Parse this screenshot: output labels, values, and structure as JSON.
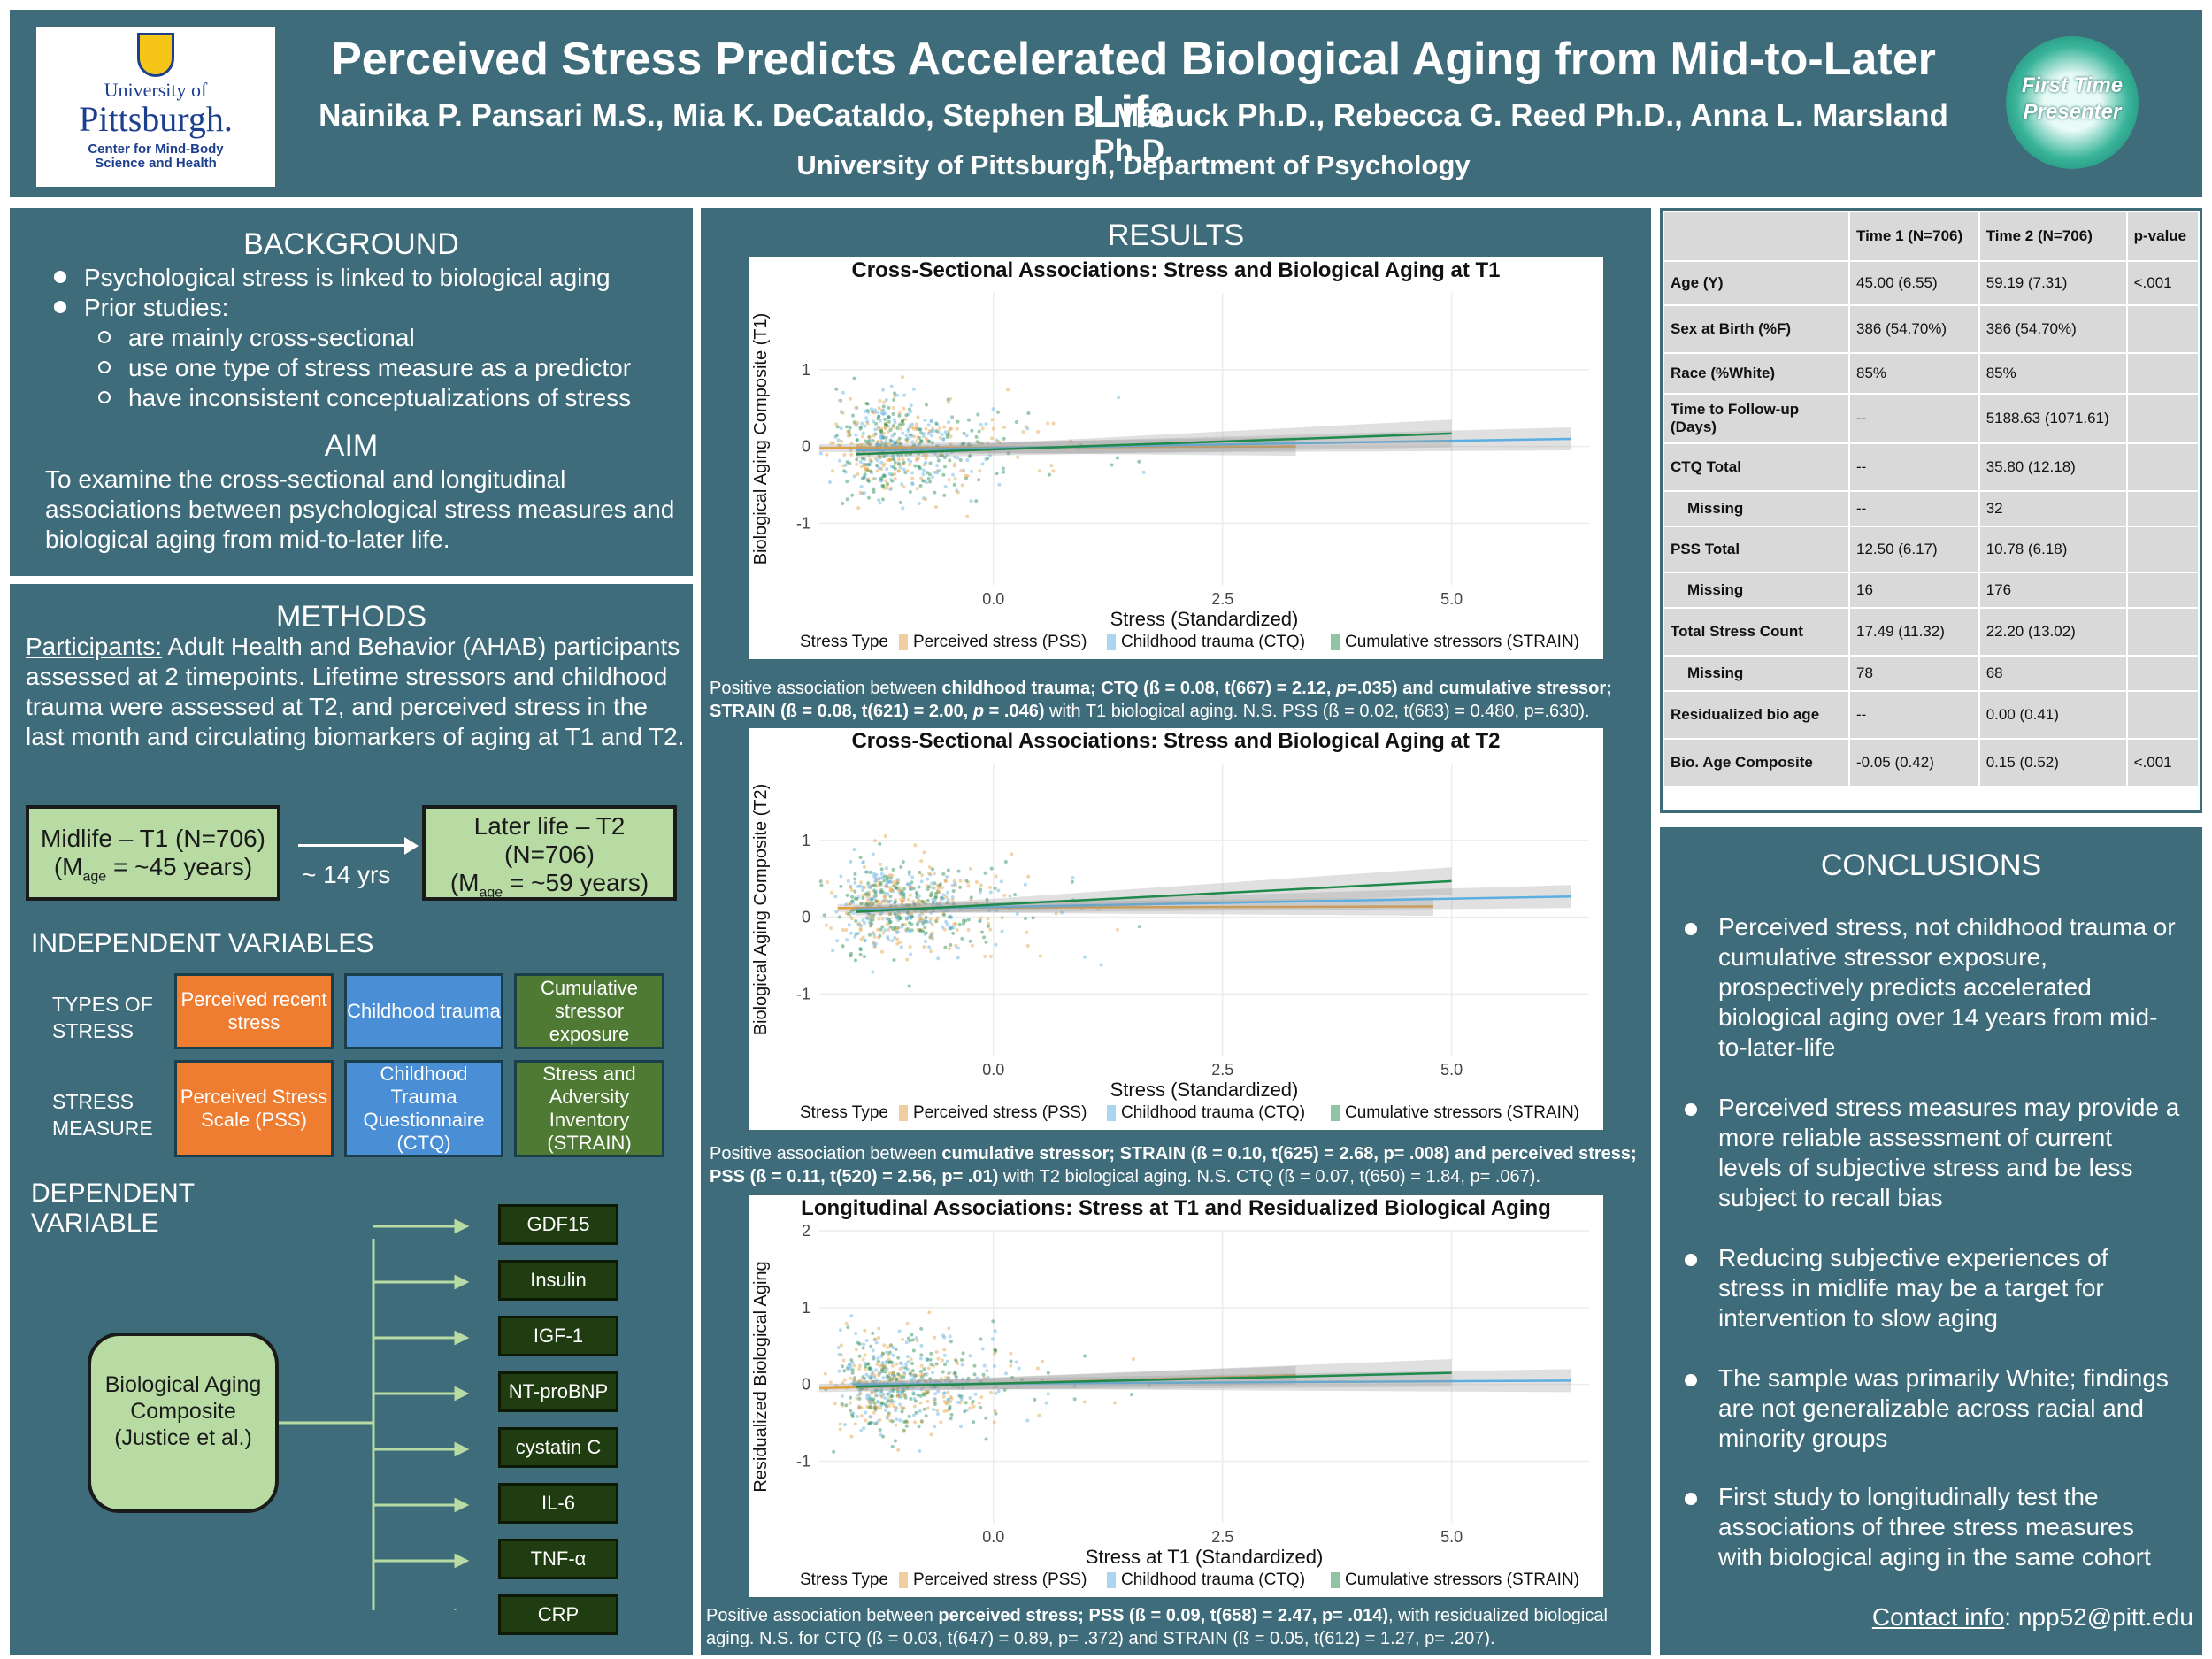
{
  "header": {
    "title": "Perceived Stress Predicts Accelerated Biological Aging from Mid-to-Later Life",
    "authors": "Nainika P. Pansari M.S., Mia K. DeCataldo, Stephen B. Manuck Ph.D., Rebecca G. Reed Ph.D., Anna L. Marsland Ph.D.",
    "affiliation": "University of Pittsburgh, Department of Psychology",
    "logo_left": {
      "line1": "University of",
      "line2": "Pittsburgh.",
      "line3": "Center for Mind-Body",
      "line4": "Science and Health"
    },
    "logo_right": {
      "line1": "First Time",
      "line2": "Presenter"
    }
  },
  "background": {
    "heading": "BACKGROUND",
    "bullets": [
      "Psychological stress is linked to biological aging",
      "Prior studies:"
    ],
    "sub_bullets": [
      "are mainly cross-sectional",
      "use one type of stress measure as a predictor",
      "have inconsistent conceptualizations of stress"
    ],
    "aim_heading": "AIM",
    "aim_text": "To examine the cross-sectional and longitudinal associations between psychological stress measures and biological aging from mid-to-later life."
  },
  "methods": {
    "heading": "METHODS",
    "participants_label": "Participants:",
    "participants_text": " Adult Health and Behavior (AHAB) participants assessed at 2 timepoints. Lifetime stressors and childhood trauma were assessed at T2, and perceived stress in the last month and circulating biomarkers of aging at T1 and T2.",
    "t1_line1": "Midlife – T1 (N=706)",
    "t1_m": "(M",
    "t1_sub": "age",
    "t1_rest": " = ~45 years)",
    "gap": "~ 14 yrs",
    "t2_line1": "Later life – T2",
    "t2_line2": "(N=706)",
    "t2_m": "(M",
    "t2_sub": "age",
    "t2_rest": " = ~59 years)",
    "iv_heading": "INDEPENDENT VARIABLES",
    "types_label": "TYPES OF STRESS",
    "measure_label": "STRESS MEASURE",
    "types": [
      "Perceived recent stress",
      "Childhood trauma",
      "Cumulative stressor exposure"
    ],
    "measures": [
      "Perceived Stress Scale (PSS)",
      "Childhood Trauma Questionnaire (CTQ)",
      "Stress and Adversity Inventory (STRAIN)"
    ],
    "dv_heading": "DEPENDENT VARIABLE",
    "composite": "Biological Aging Composite (Justice et al.)",
    "biomarkers": [
      "GDF15",
      "Insulin",
      "IGF-1",
      "NT-proBNP",
      "cystatin C",
      "IL-6",
      "TNF-α",
      "CRP"
    ]
  },
  "results": {
    "heading": "RESULTS",
    "legend": {
      "title": "Stress Type",
      "items": [
        "Perceived stress (PSS)",
        "Childhood trauma (CTQ)",
        "Cumulative stressors (STRAIN)"
      ],
      "colors": [
        "#e0a040",
        "#5aaee0",
        "#1f8a4c"
      ]
    },
    "caption1_pre": "Positive association between ",
    "caption1_b1": "childhood trauma; CTQ (ß = 0.08, t(667) = 2.12, ",
    "caption1_p1": "p",
    "caption1_b1b": "=.035) and cumulative stressor; STRAIN (ß  = 0.08, t(621) = 2.00, ",
    "caption1_p2": "p",
    "caption1_b2": " = .046)",
    "caption1_post": " with T1 biological aging. N.S. PSS (ß = 0.02, t(683) = 0.480, p=.630).",
    "caption2_pre": "Positive association between ",
    "caption2_b": "cumulative stressor; STRAIN (ß  = 0.10, t(625) = 2.68, p= .008) and perceived stress; PSS (ß  = 0.11, t(520) = 2.56, p= .01)",
    "caption2_post": " with T2 biological aging. N.S. CTQ (ß = 0.07, t(650) = 1.84, p= .067).",
    "caption3_pre": "Positive association between ",
    "caption3_b": "perceived stress; PSS (ß = 0.09, t(658) = 2.47, p= .014)",
    "caption3_post": ", with residualized biological aging. N.S. for CTQ (ß = 0.03, t(647) = 0.89, p= .372) and STRAIN (ß = 0.05, t(612) = 1.27, p= .207)."
  },
  "chart_data": [
    {
      "type": "scatter",
      "title": "Cross-Sectional Associations: Stress and Biological Aging at T1",
      "xlabel": "Stress (Standardized)",
      "ylabel": "Biological Aging Composite (T1)",
      "xlim": [
        -1.9,
        6.5
      ],
      "ylim": [
        -1.8,
        2.0
      ],
      "xticks": [
        0.0,
        2.5,
        5.0
      ],
      "yticks": [
        -1,
        0,
        1
      ],
      "series": [
        {
          "name": "Perceived stress (PSS)",
          "line": [
            [
              -1.9,
              -0.02
            ],
            [
              3.3,
              0.0
            ]
          ]
        },
        {
          "name": "Childhood trauma (CTQ)",
          "line": [
            [
              -1.5,
              -0.05
            ],
            [
              6.3,
              0.1
            ]
          ]
        },
        {
          "name": "Cumulative stressors (STRAIN)",
          "line": [
            [
              -1.5,
              -0.1
            ],
            [
              5.0,
              0.17
            ]
          ]
        }
      ]
    },
    {
      "type": "scatter",
      "title": "Cross-Sectional Associations: Stress and Biological Aging at T2",
      "xlabel": "Stress (Standardized)",
      "ylabel": "Biological Aging Composite (T2)",
      "xlim": [
        -1.9,
        6.5
      ],
      "ylim": [
        -1.8,
        2.0
      ],
      "xticks": [
        0.0,
        2.5,
        5.0
      ],
      "yticks": [
        -1,
        0,
        1
      ],
      "series": [
        {
          "name": "Perceived stress (PSS)",
          "line": [
            [
              -1.7,
              0.12
            ],
            [
              4.8,
              0.14
            ]
          ]
        },
        {
          "name": "Childhood trauma (CTQ)",
          "line": [
            [
              -1.5,
              0.1
            ],
            [
              6.3,
              0.27
            ]
          ]
        },
        {
          "name": "Cumulative stressors (STRAIN)",
          "line": [
            [
              -1.5,
              0.07
            ],
            [
              5.0,
              0.47
            ]
          ]
        }
      ]
    },
    {
      "type": "scatter",
      "title": "Longitudinal Associations: Stress at T1 and Residualized Biological Aging",
      "xlabel": "Stress at T1 (Standardized)",
      "ylabel": "Residualized Biological Aging",
      "xlim": [
        -1.9,
        6.5
      ],
      "ylim": [
        -1.8,
        2.0
      ],
      "xticks": [
        0.0,
        2.5,
        5.0
      ],
      "yticks": [
        -1,
        0,
        1,
        2
      ],
      "series": [
        {
          "name": "Perceived stress (PSS)",
          "line": [
            [
              -1.9,
              -0.05
            ],
            [
              3.3,
              0.12
            ]
          ]
        },
        {
          "name": "Childhood trauma (CTQ)",
          "line": [
            [
              -1.5,
              0.0
            ],
            [
              6.3,
              0.05
            ]
          ]
        },
        {
          "name": "Cumulative stressors (STRAIN)",
          "line": [
            [
              -1.5,
              -0.03
            ],
            [
              5.0,
              0.15
            ]
          ]
        }
      ]
    }
  ],
  "table": {
    "headers": [
      "",
      "Time 1 (N=706)",
      "Time 2 (N=706)",
      "p-value"
    ],
    "rows": [
      [
        "Age (Y)",
        "45.00 (6.55)",
        "59.19 (7.31)",
        "<.001"
      ],
      [
        "Sex at Birth (%F)",
        "386 (54.70%)",
        "386 (54.70%)",
        ""
      ],
      [
        "Race (%White)",
        "85%",
        "85%",
        ""
      ],
      [
        "Time to Follow-up (Days)",
        "--",
        "5188.63 (1071.61)",
        ""
      ],
      [
        "CTQ Total",
        "--",
        "35.80 (12.18)",
        ""
      ],
      [
        "Missing",
        "--",
        "32",
        ""
      ],
      [
        "PSS Total",
        "12.50 (6.17)",
        "10.78 (6.18)",
        ""
      ],
      [
        "Missing",
        "16",
        "176",
        ""
      ],
      [
        "Total Stress Count",
        "17.49 (11.32)",
        "22.20 (13.02)",
        ""
      ],
      [
        "Missing",
        "78",
        "68",
        ""
      ],
      [
        "Residualized bio age",
        "--",
        "0.00 (0.41)",
        ""
      ],
      [
        "Bio. Age Composite",
        "-0.05 (0.42)",
        "0.15 (0.52)",
        "<.001"
      ]
    ]
  },
  "conclusions": {
    "heading": "CONCLUSIONS",
    "bullets": [
      "Perceived stress, not childhood trauma or cumulative stressor exposure, prospectively predicts accelerated biological aging over 14 years from mid-to-later-life",
      "Perceived stress measures may provide a more reliable assessment of current levels of subjective stress and be less subject to recall bias",
      "Reducing subjective experiences of stress in midlife may be a target for intervention to slow aging",
      "The sample was primarily White; findings are not generalizable across racial and minority groups",
      "First study to longitudinally test the associations of three stress measures with biological aging in the same cohort"
    ],
    "contact_label": "Contact info",
    "contact_value": ": npp52@pitt.edu"
  }
}
